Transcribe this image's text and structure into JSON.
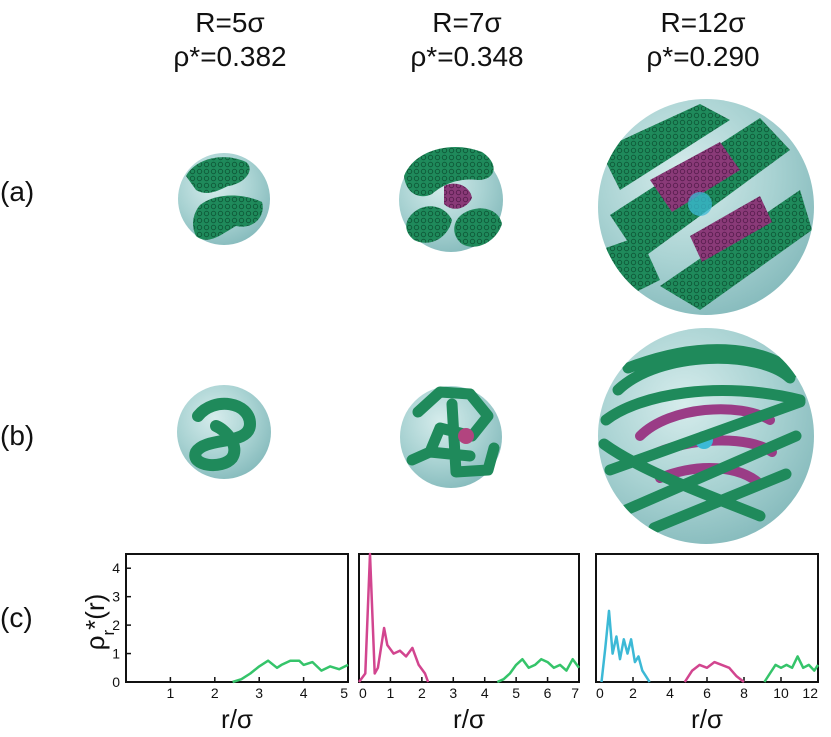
{
  "columns": [
    {
      "radius": "R=5σ",
      "density": "ρ*=0.382"
    },
    {
      "radius": "R=7σ",
      "density": "ρ*=0.348"
    },
    {
      "radius": "R=12σ",
      "density": "ρ*=0.290"
    }
  ],
  "row_labels": {
    "a": "(a)",
    "b": "(b)",
    "c": "(c)"
  },
  "colors": {
    "sphere": "#9fcfcf",
    "chain": "#1f8a5b",
    "outer": "#35c46a",
    "middle": "#d2458f",
    "inner": "#3cb9d6"
  },
  "chart_data": [
    {
      "type": "line",
      "ylabel": "ρr*(r)",
      "xlabel": "r/σ",
      "xlim": [
        0,
        5
      ],
      "ylim": [
        0,
        4.5
      ],
      "xticks": [
        "1",
        "2",
        "3",
        "4",
        "5"
      ],
      "yticks": [
        "0",
        "1",
        "2",
        "3",
        "4"
      ],
      "series": [
        {
          "color": "#35c46a",
          "x": [
            2.4,
            2.6,
            2.8,
            3.0,
            3.2,
            3.4,
            3.5,
            3.7,
            3.9,
            4.0,
            4.2,
            4.4,
            4.6,
            4.8,
            5.0
          ],
          "y": [
            0,
            0.1,
            0.3,
            0.55,
            0.75,
            0.5,
            0.6,
            0.75,
            0.75,
            0.6,
            0.7,
            0.4,
            0.55,
            0.45,
            0.6
          ]
        }
      ]
    },
    {
      "type": "line",
      "xlabel": "r/σ",
      "xlim": [
        0,
        7
      ],
      "ylim": [
        0,
        4.5
      ],
      "xticks": [
        "0",
        "1",
        "2",
        "3",
        "4",
        "5",
        "6",
        "7"
      ],
      "series": [
        {
          "color": "#d2458f",
          "x": [
            0.0,
            0.2,
            0.35,
            0.5,
            0.6,
            0.8,
            0.9,
            1.1,
            1.3,
            1.5,
            1.7,
            1.9,
            2.1,
            2.2
          ],
          "y": [
            0,
            0.3,
            4.5,
            0.3,
            0.5,
            1.9,
            1.3,
            1.0,
            1.1,
            0.9,
            1.2,
            0.6,
            0.3,
            0
          ]
        },
        {
          "color": "#35c46a",
          "x": [
            4.4,
            4.6,
            4.8,
            5.0,
            5.2,
            5.4,
            5.6,
            5.8,
            6.0,
            6.2,
            6.4,
            6.6,
            6.8,
            7.0
          ],
          "y": [
            0,
            0.1,
            0.3,
            0.6,
            0.8,
            0.5,
            0.6,
            0.8,
            0.7,
            0.5,
            0.6,
            0.4,
            0.8,
            0.5
          ]
        }
      ]
    },
    {
      "type": "line",
      "xlabel": "r/σ",
      "xlim": [
        0,
        12
      ],
      "ylim": [
        0,
        4.5
      ],
      "xticks": [
        "0",
        "2",
        "4",
        "6",
        "8",
        "10",
        "12"
      ],
      "series": [
        {
          "color": "#3cb9d6",
          "x": [
            0.3,
            0.5,
            0.7,
            0.9,
            1.1,
            1.3,
            1.5,
            1.7,
            1.9,
            2.1,
            2.3,
            2.5,
            2.7,
            2.9
          ],
          "y": [
            0,
            1.2,
            2.5,
            1.0,
            1.6,
            0.8,
            1.5,
            1.0,
            1.5,
            0.7,
            0.9,
            0.4,
            0.2,
            0
          ]
        },
        {
          "color": "#d2458f",
          "x": [
            4.8,
            5.2,
            5.6,
            6.0,
            6.4,
            6.8,
            7.2,
            7.6,
            8.0
          ],
          "y": [
            0,
            0.4,
            0.6,
            0.5,
            0.7,
            0.6,
            0.5,
            0.2,
            0
          ]
        },
        {
          "color": "#35c46a",
          "x": [
            9.1,
            9.4,
            9.7,
            10.0,
            10.3,
            10.6,
            10.9,
            11.2,
            11.5,
            11.8,
            12.0
          ],
          "y": [
            0,
            0.3,
            0.6,
            0.5,
            0.6,
            0.5,
            0.9,
            0.5,
            0.6,
            0.4,
            0.6
          ]
        }
      ]
    }
  ]
}
